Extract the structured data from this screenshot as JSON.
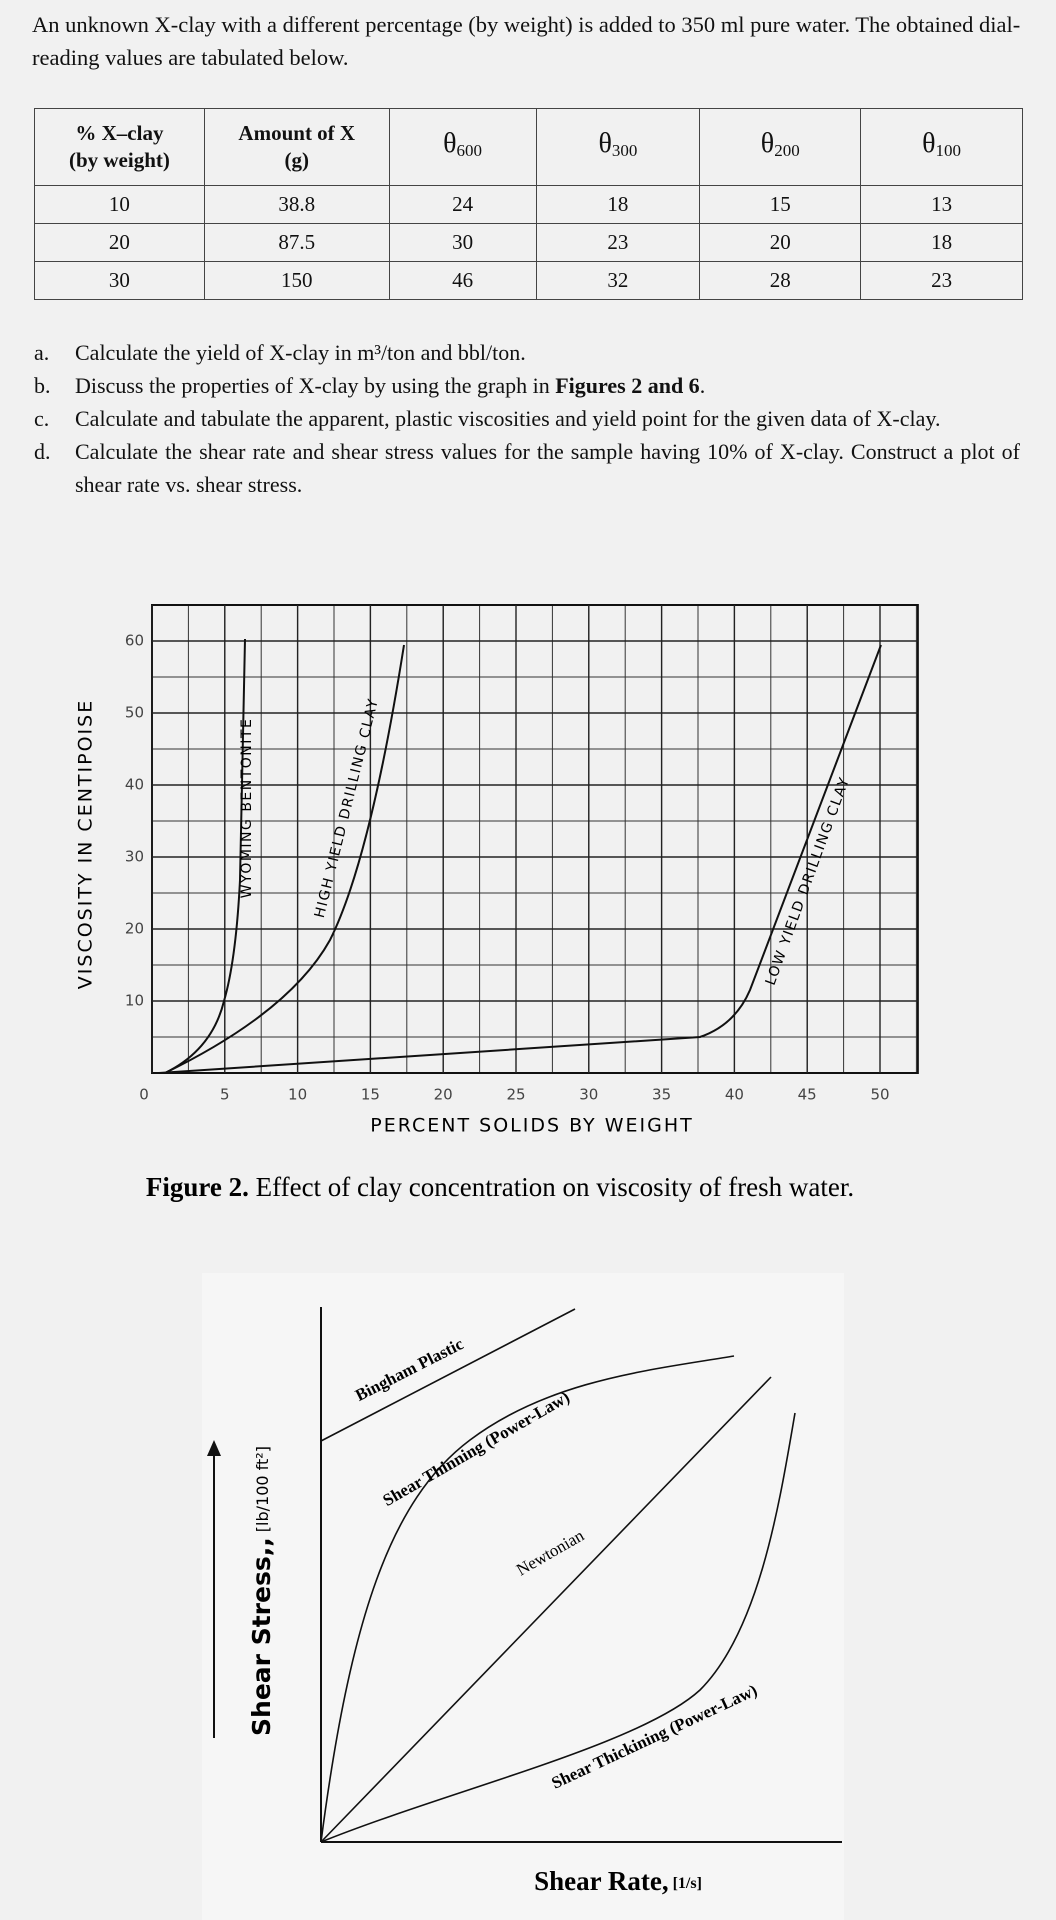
{
  "intro": "An unknown X-clay with a different percentage (by weight) is added to 350 ml pure water. The obtained dial-reading values are tabulated below.",
  "table": {
    "header": [
      {
        "lines": [
          "% X–clay",
          "(by weight)"
        ]
      },
      {
        "lines": [
          "Amount of X",
          "(g)"
        ]
      },
      {
        "symbol": "θ",
        "sub": "600"
      },
      {
        "symbol": "θ",
        "sub": "300"
      },
      {
        "symbol": "θ",
        "sub": "200"
      },
      {
        "symbol": "θ",
        "sub": "100"
      }
    ],
    "rows": [
      [
        10,
        38.8,
        24,
        18,
        15,
        13
      ],
      [
        20,
        87.5,
        30,
        23,
        20,
        18
      ],
      [
        30,
        150,
        46,
        32,
        28,
        23
      ]
    ]
  },
  "questions": [
    {
      "label": "a.",
      "parts": [
        {
          "text": "Calculate the yield of X-clay in m³/ton and bbl/ton."
        }
      ]
    },
    {
      "label": "b.",
      "parts": [
        {
          "text": "Discuss the properties of X-clay by using the graph in "
        },
        {
          "text": "Figures 2 and 6",
          "bold": true
        },
        {
          "text": "."
        }
      ]
    },
    {
      "label": "c.",
      "parts": [
        {
          "text": "Calculate and tabulate the apparent, plastic viscosities and yield point for the given data of X-clay."
        }
      ]
    },
    {
      "label": "d.",
      "parts": [
        {
          "text": "Calculate the shear rate and shear stress values for the sample having 10% of X-clay. Construct a plot of shear rate vs. shear stress."
        }
      ]
    }
  ],
  "figure2": {
    "y_axis_label": "VISCOSITY IN CENTIPOISE",
    "x_axis_label": "PERCENT SOLIDS BY WEIGHT",
    "yticks": [
      10,
      20,
      30,
      40,
      50,
      60
    ],
    "xticks": [
      0,
      5,
      10,
      15,
      20,
      25,
      30,
      35,
      40,
      45,
      50
    ],
    "curve_labels": [
      "WYOMING BENTONITE",
      "HIGH YIELD DRILLING CLAY",
      "LOW YIELD DRILLING CLAY"
    ],
    "caption": {
      "label": "Figure 2.",
      "text": "Effect of clay concentration on viscosity of fresh water."
    }
  },
  "figure3": {
    "y_axis_label": {
      "text": "Shear Stress,,",
      "unit": "[lb/100 ft²]"
    },
    "x_axis_label": {
      "text": "Shear Rate,",
      "unit": "[1/s]"
    },
    "curve_labels": [
      "Bingham Plastic",
      "Shear Thinning (Power-Law)",
      "Newtonian",
      "Shear Thickining (Power-Law)"
    ]
  }
}
